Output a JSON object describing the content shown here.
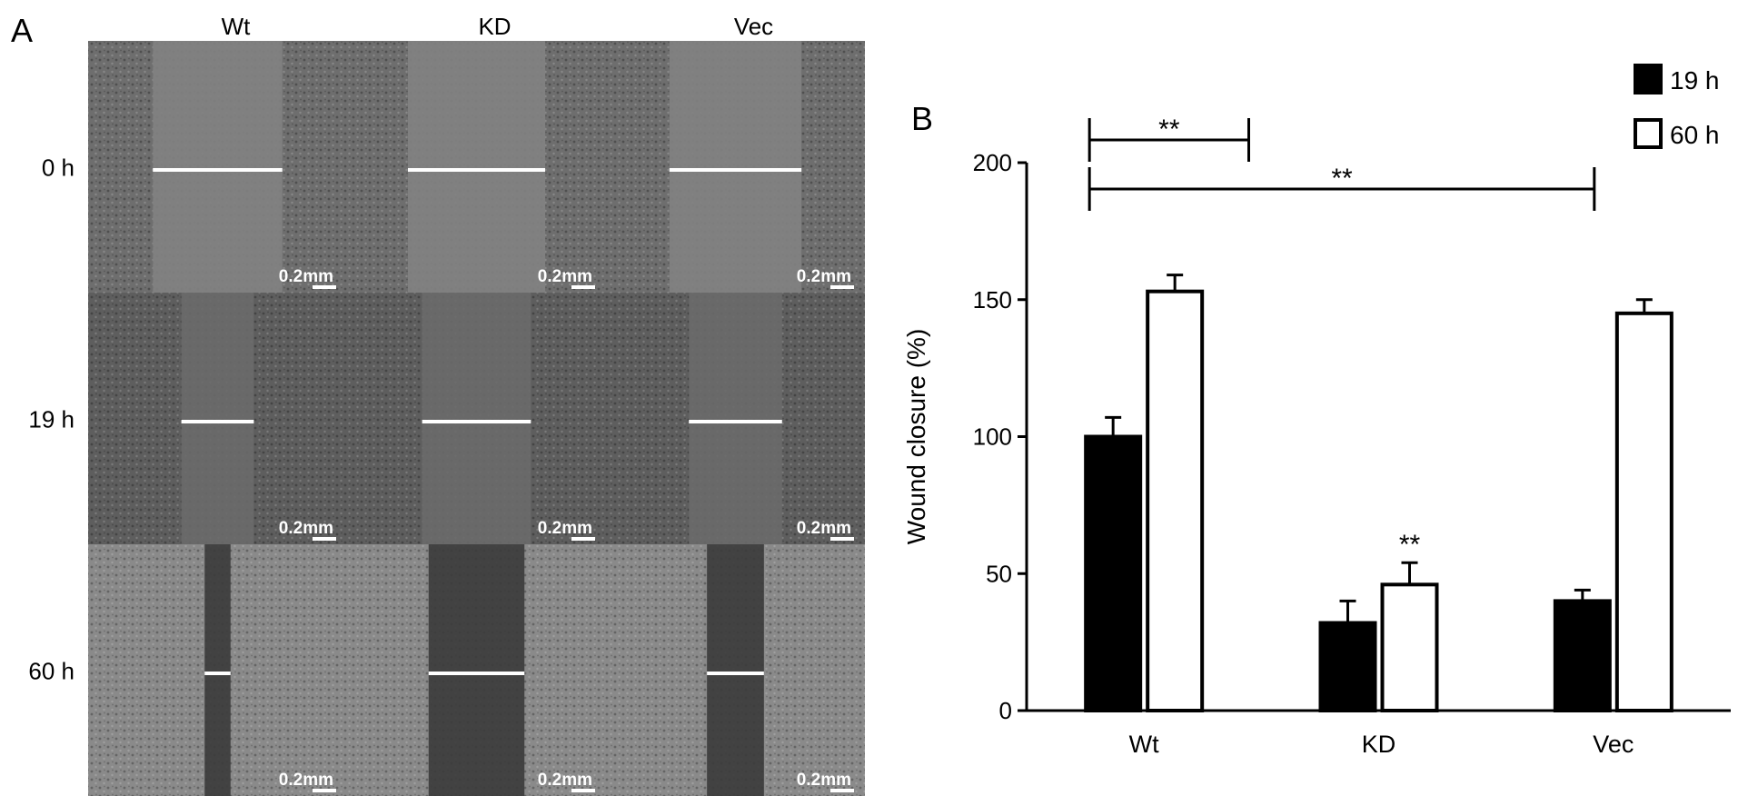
{
  "panel_a": {
    "label": "A",
    "columns": [
      "Wt",
      "KD",
      "Vec"
    ],
    "rows": [
      "0 h",
      "19 h",
      "60 h"
    ],
    "scale_bar_label": "0.2mm",
    "colors": {
      "tile_bg_0h": "#6e6e6e",
      "tile_bg_19h": "#5e5e5e",
      "tile_bg_60h": "#8a8a8a",
      "gap_0h": "#828282",
      "gap_19h": "#6a6a6a",
      "gap_60h": "#3a3a3a",
      "line": "#ffffff"
    },
    "wound_width_relative": [
      [
        0.5,
        0.53,
        0.51
      ],
      [
        0.28,
        0.42,
        0.36
      ],
      [
        0.1,
        0.37,
        0.22
      ]
    ]
  },
  "panel_b": {
    "label": "B"
  },
  "chart_data": {
    "type": "bar",
    "categories": [
      "Wt",
      "KD",
      "Vec"
    ],
    "series": [
      {
        "name": "19 h",
        "values": [
          100,
          32,
          40
        ],
        "errors": [
          7,
          8,
          4
        ],
        "fill": "#000000"
      },
      {
        "name": "60 h",
        "values": [
          153,
          46,
          145
        ],
        "errors": [
          6,
          8,
          5
        ],
        "fill": "#ffffff"
      }
    ],
    "ylabel": "Wound closure (%)",
    "xlabel": "",
    "ylim": [
      0,
      200
    ],
    "yticks": [
      0,
      50,
      100,
      150,
      200
    ],
    "legend": "top-right",
    "grid": false,
    "annotations": [
      {
        "text": "**",
        "type": "bracket",
        "from": "Wt",
        "to": "KD",
        "level": 1
      },
      {
        "text": "**",
        "type": "bracket",
        "from": "Wt",
        "to": "Vec",
        "level": 2
      },
      {
        "text": "**",
        "type": "bar-mark",
        "category": "KD",
        "series": "60 h"
      }
    ]
  }
}
